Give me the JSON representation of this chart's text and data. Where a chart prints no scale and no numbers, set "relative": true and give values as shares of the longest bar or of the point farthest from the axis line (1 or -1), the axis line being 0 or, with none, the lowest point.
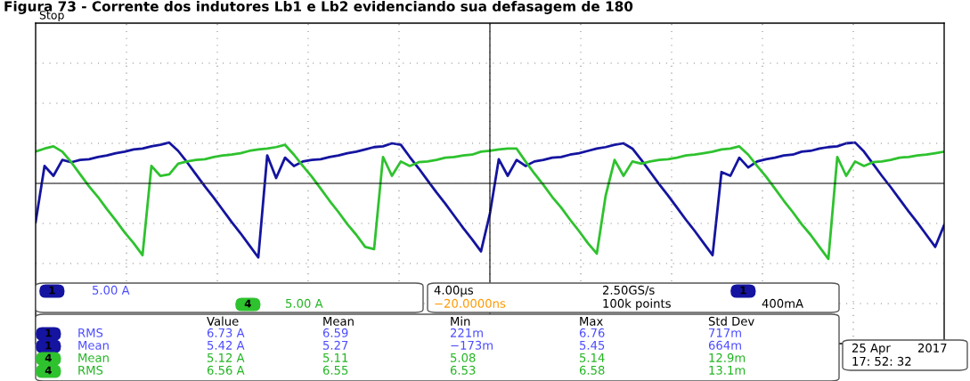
{
  "chart_data": {
    "type": "line",
    "title": "Figura 73 - Corrente dos indutores Lb1 e Lb2 evidenciando sua defasagem de 180",
    "relative": true,
    "grid": true,
    "legend": "bottom left",
    "categories": [
      null,
      null,
      null,
      null,
      null,
      null,
      null,
      null,
      null,
      null,
      null,
      null,
      null,
      null,
      null,
      null,
      null,
      null,
      null,
      null,
      null,
      null,
      null,
      null,
      null,
      null,
      null,
      null,
      null,
      null,
      null,
      null,
      null,
      null,
      null,
      null,
      null,
      null,
      null,
      null,
      null,
      null,
      null,
      null,
      null,
      null,
      null,
      null,
      null,
      null,
      null,
      null,
      null,
      null,
      null,
      null,
      null,
      null,
      null,
      null,
      null,
      null,
      null,
      null,
      null,
      null,
      null,
      null,
      null,
      null,
      null,
      null,
      null,
      null,
      null,
      null,
      null,
      null,
      null,
      null,
      null,
      null,
      null,
      null,
      null,
      null,
      null,
      null,
      null,
      null,
      null,
      null,
      null,
      null,
      null,
      null,
      null,
      null,
      null,
      null,
      null,
      null,
      null
    ],
    "series": [
      {
        "name": "1",
        "color": "#1414a0",
        "values": [
          -0.51,
          0.23,
          0.1,
          0.31,
          0.28,
          0.31,
          0.32,
          0.35,
          0.37,
          0.4,
          0.42,
          0.45,
          0.46,
          0.49,
          0.51,
          0.54,
          0.43,
          0.28,
          0.12,
          -0.04,
          -0.19,
          -0.35,
          -0.51,
          -0.66,
          -0.82,
          -0.98,
          0.37,
          0.07,
          0.34,
          0.23,
          0.29,
          0.31,
          0.32,
          0.35,
          0.37,
          0.4,
          0.42,
          0.45,
          0.48,
          0.49,
          0.53,
          0.51,
          0.35,
          0.2,
          0.04,
          -0.12,
          -0.27,
          -0.43,
          -0.59,
          -0.74,
          -0.9,
          -0.4,
          0.32,
          0.1,
          0.31,
          0.23,
          0.29,
          0.31,
          0.34,
          0.35,
          0.38,
          0.4,
          0.43,
          0.46,
          0.48,
          0.51,
          0.53,
          0.46,
          0.31,
          0.15,
          -0.01,
          -0.16,
          -0.32,
          -0.48,
          -0.63,
          -0.79,
          -0.95,
          0.15,
          0.1,
          0.34,
          0.21,
          0.29,
          0.32,
          0.34,
          0.37,
          0.38,
          0.42,
          0.43,
          0.46,
          0.48,
          0.49,
          0.53,
          0.54,
          0.42,
          0.26,
          0.1,
          -0.05,
          -0.21,
          -0.37,
          -0.52,
          -0.68,
          -0.84,
          -0.55
        ]
      },
      {
        "name": "4",
        "color": "#2ec22e",
        "values": [
          0.42,
          0.46,
          0.49,
          0.42,
          0.28,
          0.12,
          -0.04,
          -0.18,
          -0.34,
          -0.49,
          -0.65,
          -0.79,
          -0.95,
          0.23,
          0.1,
          0.12,
          0.26,
          0.29,
          0.31,
          0.32,
          0.35,
          0.37,
          0.38,
          0.4,
          0.43,
          0.45,
          0.46,
          0.48,
          0.51,
          0.38,
          0.23,
          0.09,
          -0.07,
          -0.23,
          -0.38,
          -0.54,
          -0.68,
          -0.84,
          -0.87,
          0.35,
          0.1,
          0.29,
          0.23,
          0.28,
          0.29,
          0.31,
          0.34,
          0.35,
          0.37,
          0.38,
          0.42,
          0.43,
          0.45,
          0.46,
          0.46,
          0.29,
          0.13,
          -0.02,
          -0.18,
          -0.32,
          -0.48,
          -0.63,
          -0.79,
          -0.93,
          -0.16,
          0.31,
          0.1,
          0.29,
          0.26,
          0.29,
          0.31,
          0.32,
          0.34,
          0.37,
          0.38,
          0.4,
          0.42,
          0.45,
          0.46,
          0.49,
          0.38,
          0.23,
          0.09,
          -0.07,
          -0.23,
          -0.38,
          -0.54,
          -0.68,
          -0.84,
          -1.0,
          0.35,
          0.1,
          0.29,
          0.23,
          0.28,
          0.29,
          0.31,
          0.34,
          0.35,
          0.37,
          0.38,
          0.4,
          0.42
        ]
      }
    ],
    "annotations": [
      "Stop",
      "5.00 A",
      "5.00 A",
      "4.00µs",
      "−20.0000ns",
      "2.50GS/s",
      "100k points",
      "400mA",
      "Value",
      "Mean",
      "Min",
      "Max",
      "Std Dev",
      "RMS",
      "6.73 A",
      "6.59",
      "221m",
      "6.76",
      "717m",
      "Mean",
      "5.42 A",
      "5.27",
      "−173m",
      "5.45",
      "664m",
      "Mean",
      "5.12 A",
      "5.11",
      "5.08",
      "5.14",
      "12.9m",
      "RMS",
      "6.56 A",
      "6.55",
      "6.53",
      "6.58",
      "13.1m",
      "25 Apr",
      "2017",
      "17: 52: 32"
    ]
  }
}
